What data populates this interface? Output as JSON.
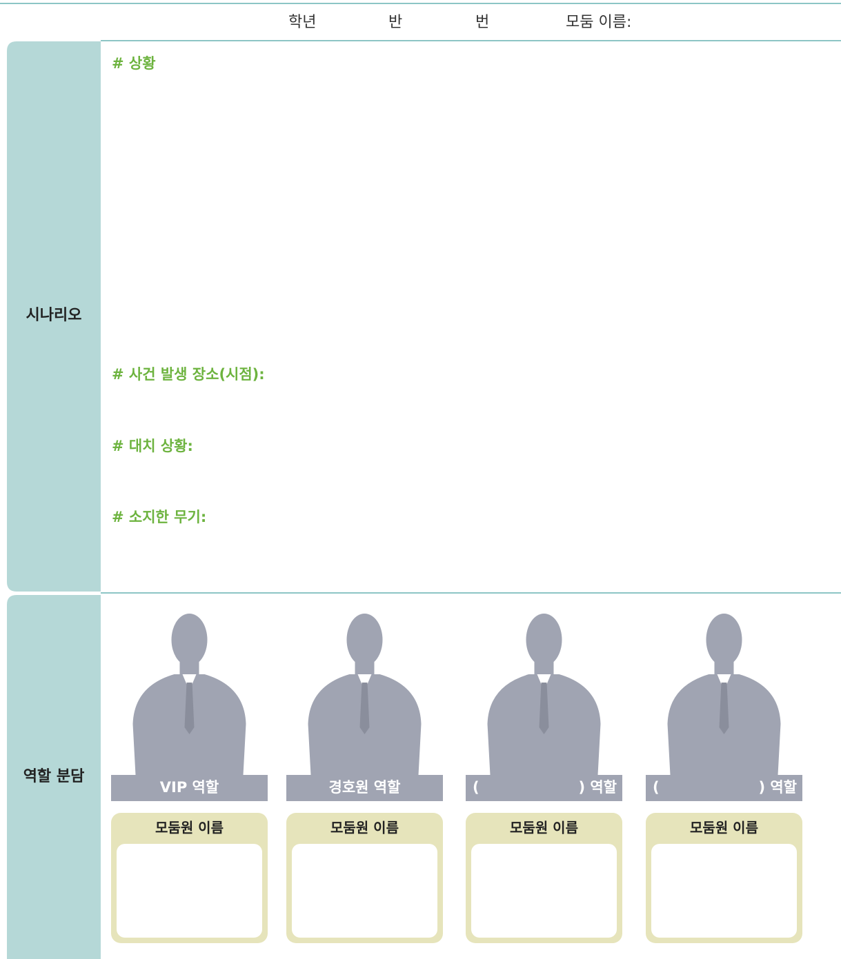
{
  "header": {
    "grade": "학년",
    "class": "반",
    "number": "번",
    "group": "모둠 이름:"
  },
  "scenario": {
    "label": "시나리오",
    "prompts": [
      "# 상황",
      "# 사건 발생 장소(시점):",
      "# 대치 상황:",
      "# 소지한 무기:"
    ]
  },
  "roles": {
    "label": "역할 분담",
    "items": [
      {
        "label": "VIP 역할",
        "member_title": "모둠원 이름"
      },
      {
        "label": "경호원 역할",
        "member_title": "모둠원 이름"
      },
      {
        "open": "(",
        "close": ") 역할",
        "member_title": "모둠원 이름"
      },
      {
        "open": "(",
        "close": ") 역할",
        "member_title": "모둠원 이름"
      }
    ]
  }
}
